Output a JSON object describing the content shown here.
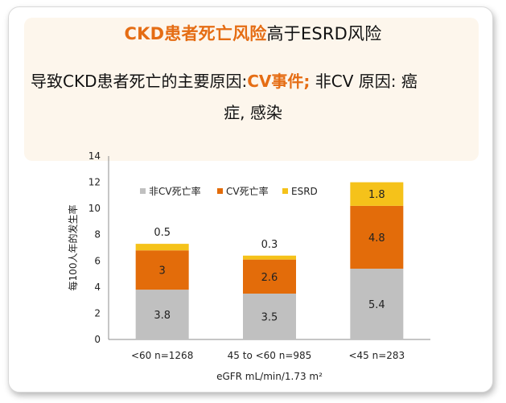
{
  "heading": {
    "highlight": "CKD患者死亡风险",
    "rest": "高于ESRD风险"
  },
  "subtitle": {
    "prefix": "导致CKD患者死亡的主要原因:",
    "highlight": "CV事件;",
    "suffix": " 非CV 原因: 癌",
    "line2": "症, 感染"
  },
  "colors": {
    "non_cv": "#c0c0c0",
    "cv": "#e36c0a",
    "esrd": "#f5c21a",
    "accent": "#e56d14"
  },
  "chart_data": {
    "type": "bar",
    "stacked": true,
    "categories": [
      "<60 n=1268",
      "45 to <60 n=985",
      "<45 n=283"
    ],
    "series": [
      {
        "name": "非CV死亡率",
        "values": [
          3.8,
          3.5,
          5.4
        ]
      },
      {
        "name": "CV死亡率",
        "values": [
          3,
          2.6,
          4.8
        ]
      },
      {
        "name": "ESRD",
        "values": [
          0.5,
          0.3,
          1.8
        ]
      }
    ],
    "xlabel": "eGFR mL/min/1.73 m²",
    "ylabel": "每100人年的发生率",
    "ylim": [
      0,
      14
    ],
    "yticks": [
      "0",
      "2",
      "4",
      "6",
      "8",
      "10",
      "12",
      "14"
    ],
    "legend_position": "top-left",
    "grid": false
  }
}
